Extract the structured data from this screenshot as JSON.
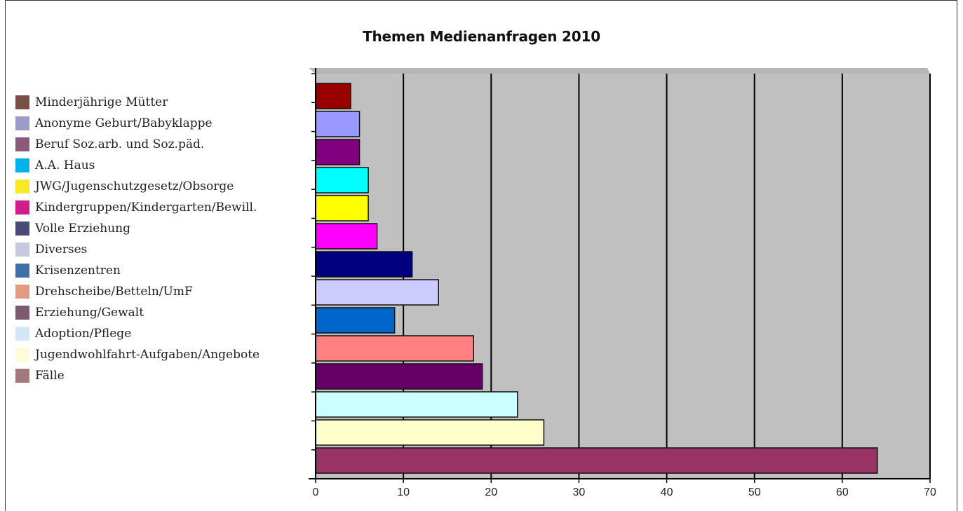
{
  "chart_data": {
    "type": "bar",
    "orientation": "horizontal",
    "title": "Themen Medienanfragen 2010",
    "xlabel": "",
    "ylabel": "",
    "xlim": [
      0,
      70
    ],
    "x_ticks": [
      0,
      10,
      20,
      30,
      40,
      50,
      60,
      70
    ],
    "grid": "vertical",
    "legend_position": "left",
    "legend": [
      {
        "label": "Minderjährige Mütter",
        "color": "#7b4f45"
      },
      {
        "label": "Anonyme Geburt/Babyklappe",
        "color": "#9b9bcc"
      },
      {
        "label": "Beruf Soz.arb. und Soz.päd.",
        "color": "#8a5a7a"
      },
      {
        "label": "A.A. Haus",
        "color": "#00b0e8"
      },
      {
        "label": "JWG/Jugenschutzgesetz/Obsorge",
        "color": "#f7e928"
      },
      {
        "label": "Kindergruppen/Kindergarten/Bewill.",
        "color": "#d11c8c"
      },
      {
        "label": "Volle Erziehung",
        "color": "#4a4a78"
      },
      {
        "label": "Diverses",
        "color": "#c8c8e2"
      },
      {
        "label": "Krisenzentren",
        "color": "#4070a8"
      },
      {
        "label": "Drehscheibe/Betteln/UmF",
        "color": "#e39a84"
      },
      {
        "label": "Erziehung/Gewalt",
        "color": "#7b5a72"
      },
      {
        "label": "Adoption/Pflege",
        "color": "#d2e8f6"
      },
      {
        "label": "Jugendwohlfahrt-Aufgaben/Angebote",
        "color": "#fffad8"
      },
      {
        "label": "Fälle",
        "color": "#a07a7e"
      }
    ],
    "bars_top_to_bottom": [
      {
        "value": 4,
        "color": "#990000"
      },
      {
        "value": 5,
        "color": "#9999ff"
      },
      {
        "value": 5,
        "color": "#800080"
      },
      {
        "value": 6,
        "color": "#00ffff"
      },
      {
        "value": 6,
        "color": "#ffff00"
      },
      {
        "value": 7,
        "color": "#ff00ff"
      },
      {
        "value": 11,
        "color": "#000080"
      },
      {
        "value": 14,
        "color": "#ccccff"
      },
      {
        "value": 9,
        "color": "#0066cc"
      },
      {
        "value": 18,
        "color": "#ff8080"
      },
      {
        "value": 19,
        "color": "#660066"
      },
      {
        "value": 23,
        "color": "#ccffff"
      },
      {
        "value": 26,
        "color": "#ffffcc"
      },
      {
        "value": 64,
        "color": "#993366"
      }
    ],
    "plot_background": "#c0c0c0"
  }
}
